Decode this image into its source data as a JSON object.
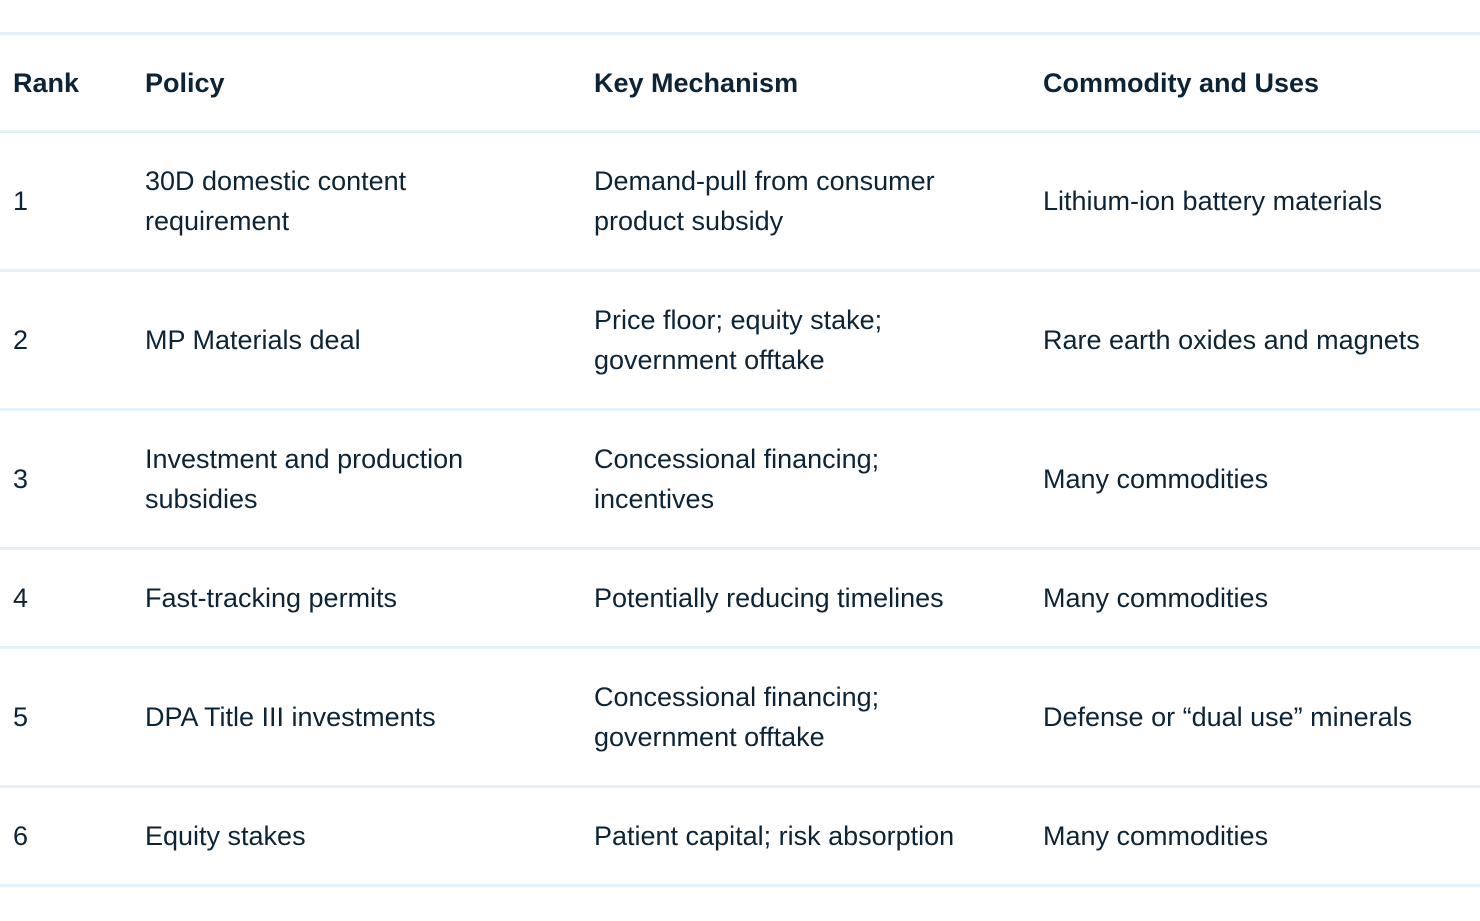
{
  "table": {
    "headers": [
      "Rank",
      "Policy",
      "Key Mechanism",
      "Commodity and Uses"
    ],
    "rows": [
      [
        "1",
        "30D domestic content requirement",
        "Demand-pull from consumer product subsidy",
        "Lithium-ion battery materials"
      ],
      [
        "2",
        "MP Materials deal",
        "Price floor; equity stake; government offtake",
        "Rare earth oxides and magnets"
      ],
      [
        "3",
        "Investment and production subsidies",
        "Concessional financing; incentives",
        "Many commodities"
      ],
      [
        "4",
        "Fast-tracking permits",
        "Potentially reducing timelines",
        "Many commodities"
      ],
      [
        "5",
        "DPA Title III investments",
        "Concessional financing; government offtake",
        "Defense or “dual use” minerals"
      ],
      [
        "6",
        "Equity stakes",
        "Patient capital; risk absorption",
        "Many commodities"
      ]
    ]
  }
}
